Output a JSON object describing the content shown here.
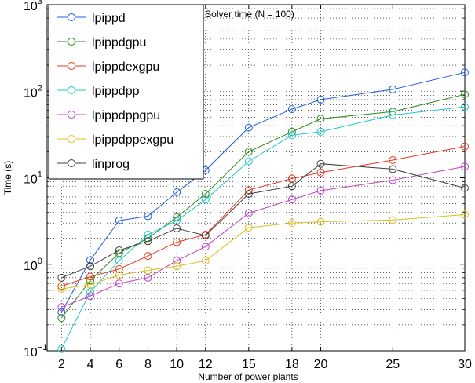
{
  "chart_data": {
    "type": "line",
    "title": "Solver time (N = 100)",
    "xlabel": "Number of power plants",
    "ylabel": "Time (s)",
    "xscale": "linear",
    "yscale": "log",
    "xlim": [
      1,
      30
    ],
    "ylim": [
      0.1,
      1000
    ],
    "grid": true,
    "legend_position": "top-left",
    "x": [
      2,
      4,
      6,
      8,
      10,
      12,
      15,
      18,
      20,
      25,
      30
    ],
    "xticks": [
      2,
      4,
      6,
      8,
      10,
      12,
      15,
      18,
      20,
      25,
      30
    ],
    "xtick_labels": [
      "2",
      "4",
      "6",
      "8",
      "10",
      "12",
      "15",
      "18",
      "20",
      "25",
      "30"
    ],
    "yticks": [
      {
        "value": 0.1,
        "base": "10",
        "exp": "−1"
      },
      {
        "value": 1,
        "base": "10",
        "exp": "0"
      },
      {
        "value": 10,
        "base": "10",
        "exp": "1"
      },
      {
        "value": 100,
        "base": "10",
        "exp": "2"
      },
      {
        "value": 1000,
        "base": "10",
        "exp": "3"
      }
    ],
    "series": [
      {
        "name": "lpippd",
        "color": "#1f5fdc",
        "values": [
          0.28,
          1.12,
          3.2,
          3.6,
          6.8,
          12.2,
          38,
          62,
          80,
          105,
          165
        ]
      },
      {
        "name": "lpippdgpu",
        "color": "#2a8a1e",
        "values": [
          0.24,
          0.65,
          1.35,
          2.0,
          3.5,
          6.5,
          20,
          34,
          48,
          58,
          92
        ]
      },
      {
        "name": "lpippdexgpu",
        "color": "#e8341c",
        "values": [
          0.56,
          0.72,
          0.88,
          1.25,
          1.8,
          2.2,
          7.2,
          9.8,
          11.5,
          16,
          23
        ]
      },
      {
        "name": "lpippdpp",
        "color": "#1ec8c8",
        "values": [
          0.105,
          0.48,
          1.1,
          2.2,
          3.2,
          5.6,
          15.5,
          31,
          34,
          53,
          66
        ]
      },
      {
        "name": "lpippdppgpu",
        "color": "#c040c8",
        "values": [
          0.32,
          0.43,
          0.6,
          0.7,
          1.1,
          1.6,
          3.9,
          5.6,
          7.1,
          9.4,
          13.5
        ]
      },
      {
        "name": "lpippdppexgpu",
        "color": "#d8c020",
        "values": [
          0.52,
          0.58,
          0.75,
          0.85,
          0.95,
          1.1,
          2.65,
          3.0,
          3.1,
          3.25,
          3.75
        ]
      },
      {
        "name": "linprog",
        "color": "#404040",
        "values": [
          0.7,
          0.95,
          1.45,
          1.85,
          2.6,
          2.15,
          6.5,
          8.0,
          14.5,
          12.6,
          7.6
        ]
      }
    ]
  }
}
